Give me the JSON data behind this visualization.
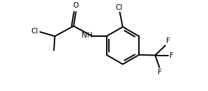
{
  "bg_color": "#ffffff",
  "bond_color": "#000000",
  "bond_lw": 1.4,
  "text_color": "#000000",
  "font_size": 7.5,
  "fig_width": 2.98,
  "fig_height": 1.31,
  "dpi": 100,
  "xlim": [
    0.0,
    10.5
  ],
  "ylim": [
    0.5,
    4.8
  ]
}
